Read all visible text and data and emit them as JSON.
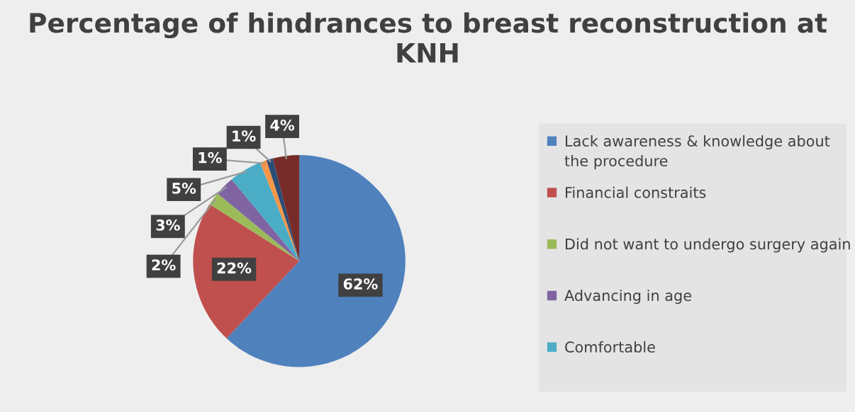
{
  "chart_data": {
    "type": "pie",
    "title": "Percentage of hindrances to breast reconstruction at KNH",
    "categories": [
      "Lack awareness & knowledge about the procedure",
      "Financial constraits",
      "Did not want to undergo surgery again",
      "Advancing in age",
      "Comfortable",
      null,
      null,
      null
    ],
    "values": [
      62,
      22,
      2,
      3,
      5,
      1,
      1,
      4
    ],
    "colors": [
      "#4f81bd",
      "#c0504d",
      "#9bbb59",
      "#8064a2",
      "#4bacc6",
      "#f79646",
      "#2c4d75",
      "#772c2a"
    ],
    "value_labels": [
      "62%",
      "22%",
      "2%",
      "3%",
      "5%",
      "1%",
      "1%",
      "4%"
    ],
    "legend": "right"
  }
}
